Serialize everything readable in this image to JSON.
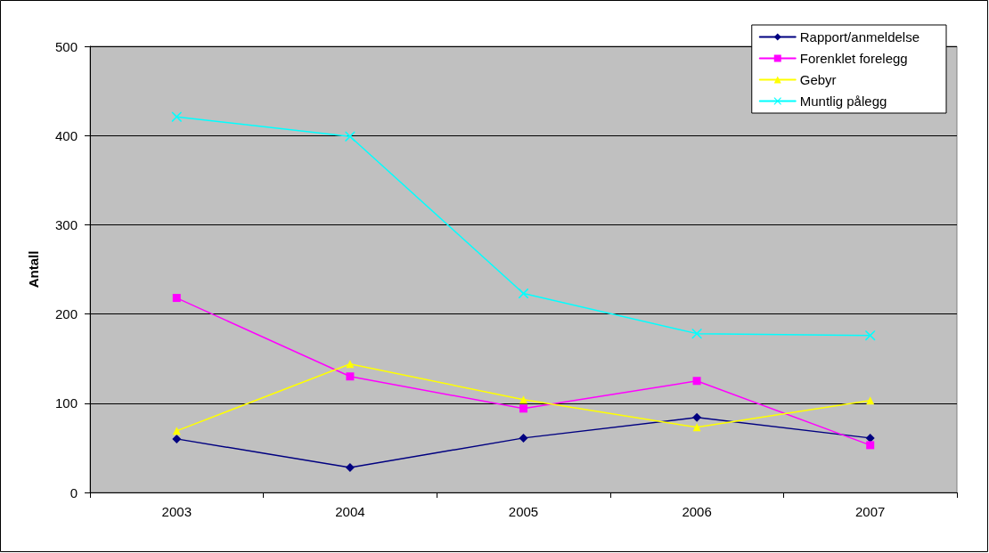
{
  "chart_data": {
    "type": "line",
    "ylabel": "Antall",
    "categories": [
      "2003",
      "2004",
      "2005",
      "2006",
      "2007"
    ],
    "series": [
      {
        "name": "Rapport/anmeldelse",
        "color": "#000080",
        "marker": "diamond",
        "values": [
          60,
          28,
          61,
          84,
          61
        ]
      },
      {
        "name": "Forenklet forelegg",
        "color": "#ff00ff",
        "marker": "square",
        "values": [
          218,
          130,
          94,
          125,
          53
        ]
      },
      {
        "name": "Gebyr",
        "color": "#ffff00",
        "marker": "triangle",
        "values": [
          69,
          144,
          104,
          73,
          103
        ]
      },
      {
        "name": "Muntlig pålegg",
        "color": "#00ffff",
        "marker": "cross",
        "values": [
          421,
          399,
          223,
          178,
          176
        ]
      }
    ],
    "ylim": [
      0,
      500
    ],
    "yticks": [
      0,
      100,
      200,
      300,
      400,
      500
    ],
    "grid": "y",
    "legend": "top right",
    "line_style": "solid"
  }
}
